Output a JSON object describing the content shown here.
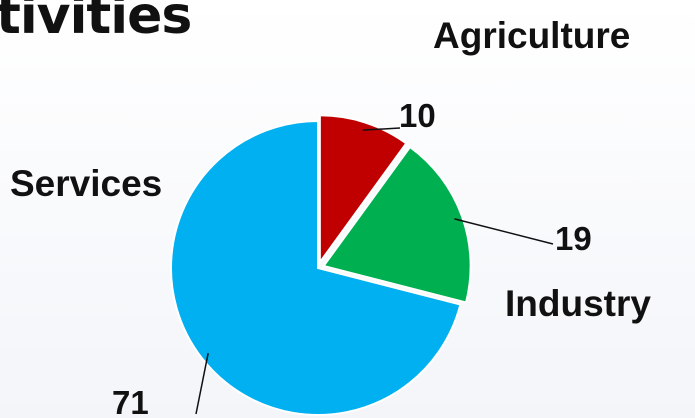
{
  "title": "tivities",
  "chart_data": {
    "type": "pie",
    "categories": [
      "Agriculture",
      "Industry",
      "Services"
    ],
    "values": [
      10,
      19,
      71
    ],
    "colors": [
      "#c00000",
      "#00b050",
      "#00b0f0"
    ],
    "legend": "none",
    "data_labels": [
      "10",
      "19",
      "71"
    ]
  }
}
